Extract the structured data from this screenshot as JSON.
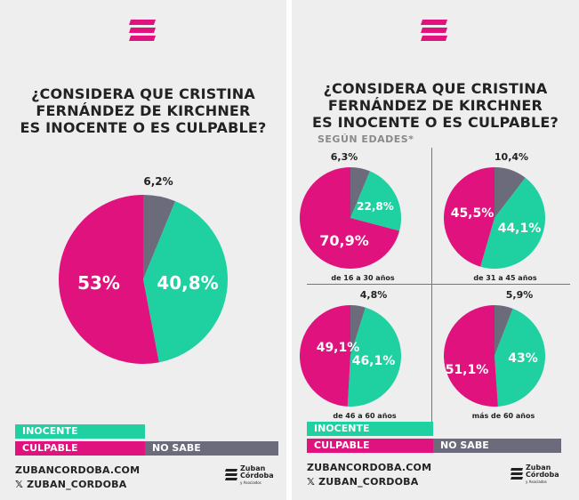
{
  "colors": {
    "inocente": "#1fd0a0",
    "culpable": "#e0127e",
    "no_sabe": "#6b6b7b",
    "background": "#eeeeee",
    "text": "#222222"
  },
  "left": {
    "title_lines": [
      "¿CONSIDERA QUE CRISTINA",
      "FERNÁNDEZ DE KIRCHNER",
      "ES INOCENTE O ES CULPABLE?"
    ]
  },
  "right": {
    "title_lines": [
      "¿CONSIDERA QUE CRISTINA",
      "FERNÁNDEZ DE KIRCHNER",
      "ES INOCENTE O ES CULPABLE?"
    ],
    "subtitle": "SEGÚN EDADES*"
  },
  "legend": {
    "inocente": "INOCENTE",
    "culpable": "CULPABLE",
    "no_sabe": "NO SABE"
  },
  "footer": {
    "website": "ZUBANCORDOBA.COM",
    "social": "𝕏 ZUBAN_CORDOBA",
    "brand_line1": "Zuban",
    "brand_line2": "Córdoba",
    "brand_line3": "y Asociados"
  },
  "chart_data": [
    {
      "type": "pie",
      "title": "¿CONSIDERA QUE CRISTINA FERNÁNDEZ DE KIRCHNER ES INOCENTE O ES CULPABLE?",
      "categories": [
        "NO SABE",
        "INOCENTE",
        "CULPABLE"
      ],
      "values": [
        6.2,
        40.8,
        53
      ],
      "labels": [
        "6,2%",
        "40,8%",
        "53%"
      ]
    },
    {
      "type": "pie",
      "caption": "de 16 a 30 años",
      "categories": [
        "NO SABE",
        "INOCENTE",
        "CULPABLE"
      ],
      "values": [
        6.3,
        22.8,
        70.9
      ],
      "labels": [
        "6,3%",
        "22,8%",
        "70,9%"
      ]
    },
    {
      "type": "pie",
      "caption": "de 31 a 45 años",
      "categories": [
        "NO SABE",
        "INOCENTE",
        "CULPABLE"
      ],
      "values": [
        10.4,
        44.1,
        45.5
      ],
      "labels": [
        "10,4%",
        "44,1%",
        "45,5%"
      ]
    },
    {
      "type": "pie",
      "caption": "de 46 a 60 años",
      "categories": [
        "NO SABE",
        "INOCENTE",
        "CULPABLE"
      ],
      "values": [
        4.8,
        46.1,
        49.1
      ],
      "labels": [
        "4,8%",
        "46,1%",
        "49,1%"
      ]
    },
    {
      "type": "pie",
      "caption": "más de 60 años",
      "categories": [
        "NO SABE",
        "INOCENTE",
        "CULPABLE"
      ],
      "values": [
        5.9,
        43,
        51.1
      ],
      "labels": [
        "5,9%",
        "43%",
        "51,1%"
      ]
    }
  ]
}
